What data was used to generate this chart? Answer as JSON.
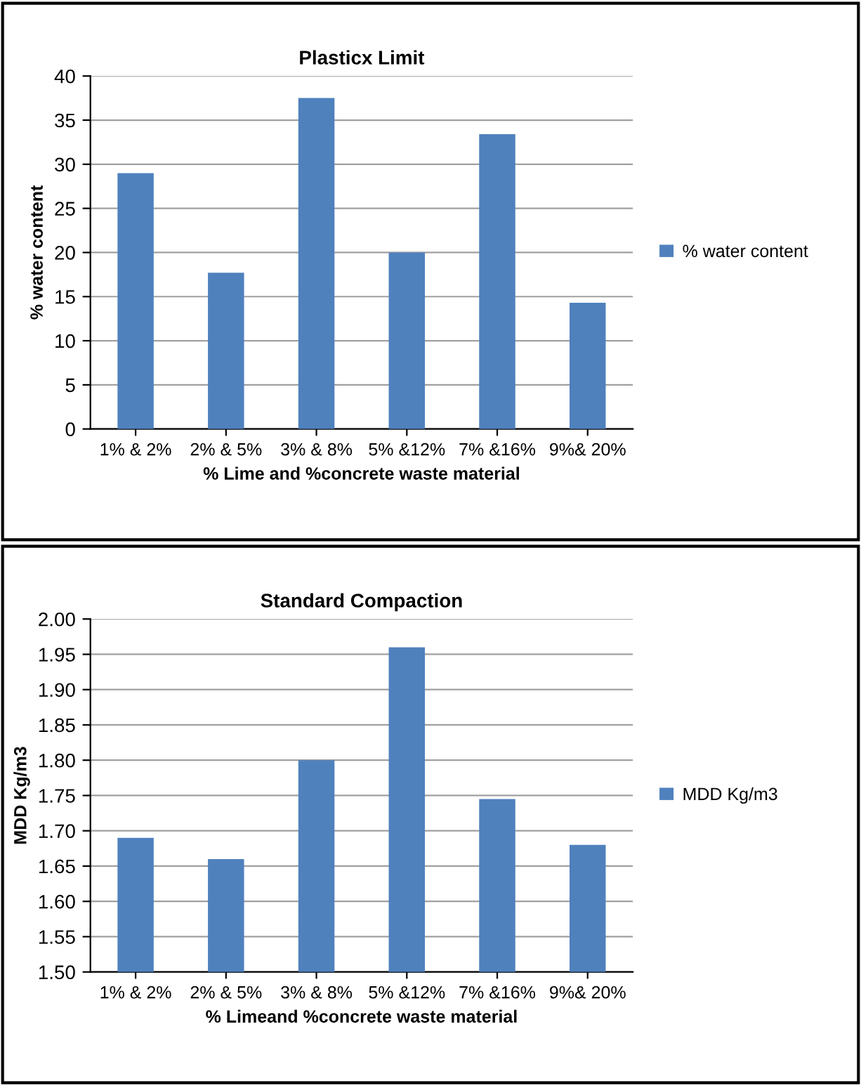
{
  "chart_data": [
    {
      "type": "bar",
      "title": "Plasticx Limit",
      "xlabel": "% Lime and %concrete waste material",
      "ylabel": "% water content",
      "categories": [
        "1% & 2%",
        "2% & 5%",
        "3% & 8%",
        "5% &12%",
        "7% &16%",
        "9%& 20%"
      ],
      "series": [
        {
          "name": "% water content",
          "color": "#4f81bd",
          "values": [
            29,
            17.7,
            37.5,
            20,
            33.4,
            14.3
          ]
        }
      ],
      "ylim": [
        0,
        40
      ],
      "yticks": [
        0,
        5,
        10,
        15,
        20,
        25,
        30,
        35,
        40
      ],
      "grid": "y",
      "legend": "right"
    },
    {
      "type": "bar",
      "title": "Standard Compaction",
      "xlabel": "% Limeand %concrete waste material",
      "ylabel": "MDD Kg/m3",
      "categories": [
        "1% & 2%",
        "2% & 5%",
        "3% & 8%",
        "5% &12%",
        "7% &16%",
        "9%& 20%"
      ],
      "series": [
        {
          "name": "MDD Kg/m3",
          "color": "#4f81bd",
          "values": [
            1.69,
            1.66,
            1.8,
            1.96,
            1.745,
            1.68
          ]
        }
      ],
      "ylim": [
        1.5,
        2.0
      ],
      "yticks": [
        {
          "value": 1.5,
          "label": "1.50"
        },
        {
          "value": 1.55,
          "label": "1.55"
        },
        {
          "value": 1.6,
          "label": "1.60"
        },
        {
          "value": 1.65,
          "label": "1.65"
        },
        {
          "value": 1.7,
          "label": "1.70"
        },
        {
          "value": 1.75,
          "label": "1.75"
        },
        {
          "value": 1.8,
          "label": "1.80"
        },
        {
          "value": 1.85,
          "label": "1.85"
        },
        {
          "value": 1.9,
          "label": "1.90"
        },
        {
          "value": 1.95,
          "label": "1.95"
        },
        {
          "value": 2.0,
          "label": "2.00"
        }
      ],
      "grid": "y",
      "legend": "right"
    }
  ]
}
